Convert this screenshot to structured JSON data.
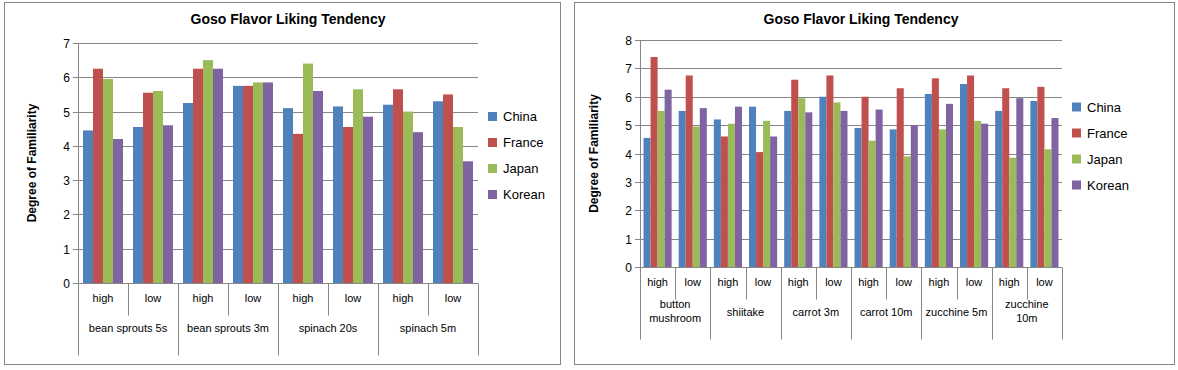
{
  "chart_data": [
    {
      "type": "bar",
      "title": "Goso Flavor Liking Tendency",
      "y_label": "Degree of Familiarity",
      "categories": [
        "high",
        "low",
        "high",
        "low",
        "high",
        "low",
        "high",
        "low"
      ],
      "category_groups": [
        "bean sprouts 5s",
        "bean sprouts 3m",
        "spinach 20s",
        "spinach 5m"
      ],
      "series": [
        {
          "name": "China",
          "color": "#4f81bd",
          "values": [
            4.45,
            4.55,
            5.25,
            5.75,
            5.1,
            5.15,
            5.2,
            5.3
          ]
        },
        {
          "name": "France",
          "color": "#c0504d",
          "values": [
            6.25,
            5.55,
            6.25,
            5.75,
            4.35,
            4.55,
            5.65,
            5.5
          ]
        },
        {
          "name": "Japan",
          "color": "#9bbb59",
          "values": [
            5.95,
            5.6,
            6.5,
            5.85,
            6.4,
            5.65,
            5.0,
            4.55
          ]
        },
        {
          "name": "Korean",
          "color": "#8064a2",
          "values": [
            4.2,
            4.6,
            6.25,
            5.85,
            5.6,
            4.85,
            4.4,
            3.55
          ]
        }
      ],
      "ylim": [
        0,
        7
      ],
      "yticks": [
        0,
        1,
        2,
        3,
        4,
        5,
        6,
        7
      ],
      "grid": true,
      "legend": "right"
    },
    {
      "type": "bar",
      "title": "Goso Flavor Liking Tendency",
      "y_label": "Degree of Familiarity",
      "categories": [
        "high",
        "low",
        "high",
        "low",
        "high",
        "low",
        "high",
        "low",
        "high",
        "low",
        "high",
        "low"
      ],
      "category_groups": [
        "button mushroom",
        "shiitake",
        "carrot 3m",
        "carrot 10m",
        "zucchine 5m",
        "zucchine 10m"
      ],
      "series": [
        {
          "name": "China",
          "color": "#4f81bd",
          "values": [
            4.55,
            5.5,
            5.2,
            5.65,
            5.5,
            6.0,
            4.9,
            4.85,
            6.1,
            6.45,
            5.5,
            5.85
          ]
        },
        {
          "name": "France",
          "color": "#c0504d",
          "values": [
            7.4,
            6.75,
            4.6,
            4.05,
            6.6,
            6.75,
            6.0,
            6.3,
            6.65,
            6.75,
            6.3,
            6.35
          ]
        },
        {
          "name": "Japan",
          "color": "#9bbb59",
          "values": [
            5.5,
            4.95,
            5.05,
            5.15,
            5.95,
            5.8,
            4.45,
            3.9,
            4.85,
            5.15,
            3.85,
            4.15
          ]
        },
        {
          "name": "Korean",
          "color": "#8064a2",
          "values": [
            6.25,
            5.6,
            5.65,
            4.6,
            5.45,
            5.5,
            5.55,
            5.0,
            5.75,
            5.05,
            5.95,
            5.25
          ]
        }
      ],
      "ylim": [
        0,
        8
      ],
      "yticks": [
        0,
        1,
        2,
        3,
        4,
        5,
        6,
        7,
        8
      ],
      "grid": true,
      "legend": "right"
    }
  ]
}
